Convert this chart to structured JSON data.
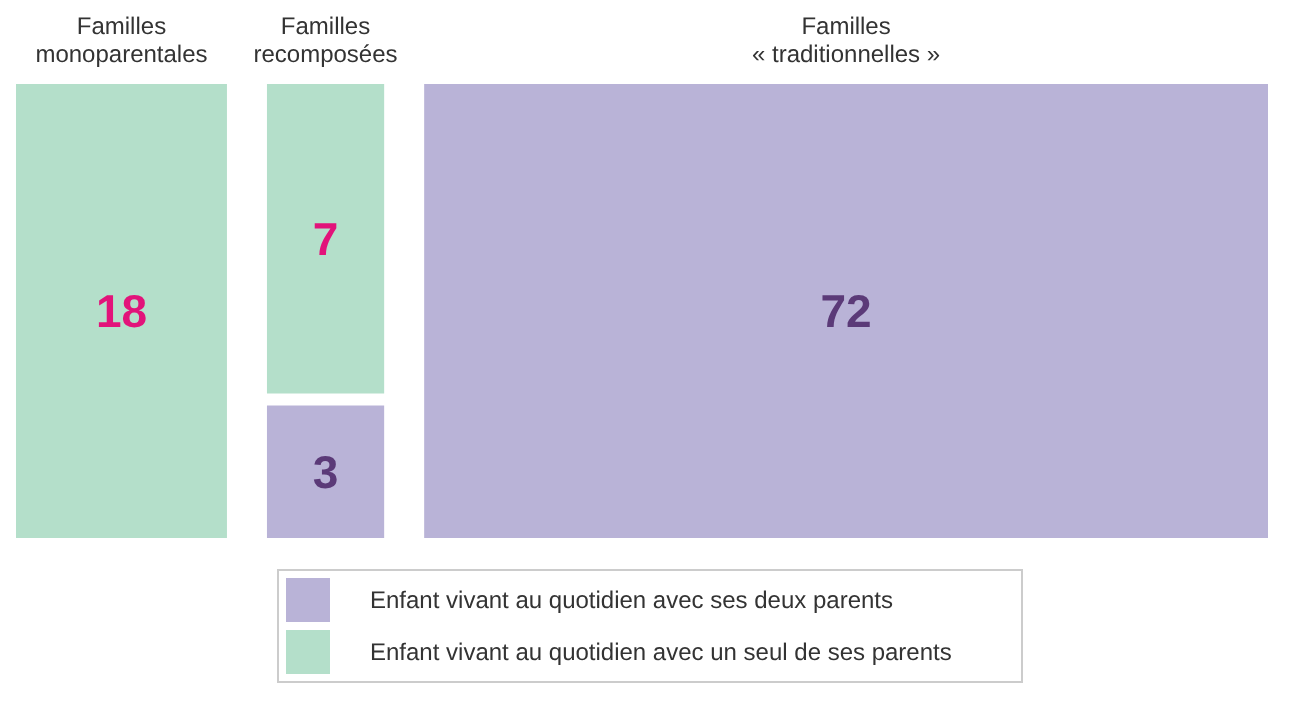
{
  "chart_data": {
    "type": "other",
    "categories": [
      "Familles monoparentales",
      "Familles recomposées",
      "Familles « traditionnelles »"
    ],
    "series": [
      {
        "name": "Enfant vivant au quotidien avec ses deux parents",
        "color": "#b9b3d7",
        "values": [
          null,
          3,
          72
        ]
      },
      {
        "name": "Enfant vivant au quotidien avec un seul de ses parents",
        "color": "#b4dfca",
        "values": [
          18,
          7,
          null
        ]
      }
    ],
    "data_labels": true,
    "legend": "bottom"
  }
}
